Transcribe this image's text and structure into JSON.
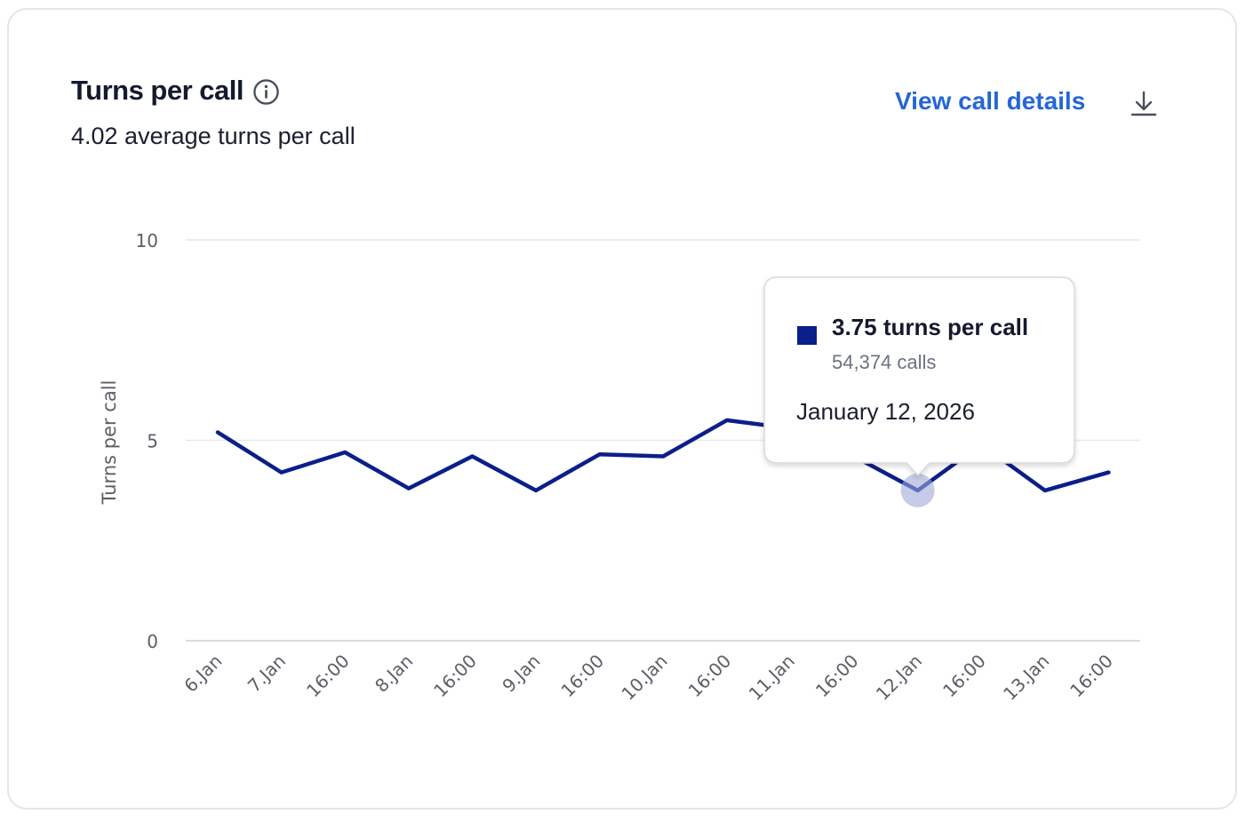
{
  "header": {
    "title": "Turns per call",
    "subtitle": "4.02 average turns per call",
    "view_details_label": "View call details",
    "info_icon": "info-icon",
    "download_icon": "download-icon"
  },
  "tooltip": {
    "value_label": "3.75 turns per call",
    "calls_label": "54,374 calls",
    "date_label": "January 12, 2026",
    "swatch_color": "#0b1f8a"
  },
  "chart_data": {
    "type": "line",
    "ylabel": "Turns per call",
    "ylim": [
      0,
      10
    ],
    "yticks": [
      "0",
      "5",
      "10"
    ],
    "categories": [
      "6.Jan",
      "7.Jan",
      "16:00",
      "8.Jan",
      "16:00",
      "9.Jan",
      "16:00",
      "10.Jan",
      "16:00",
      "11.Jan",
      "16:00",
      "12.Jan",
      "16:00",
      "13.Jan",
      "16:00"
    ],
    "series": [
      {
        "color": "#0b1f8a",
        "values": [
          5.2,
          4.2,
          4.7,
          3.8,
          4.6,
          3.75,
          4.65,
          4.6,
          5.5,
          5.3,
          4.6,
          3.75,
          4.9,
          3.75,
          4.2
        ]
      }
    ],
    "highlight_index": 11,
    "grid": true
  }
}
